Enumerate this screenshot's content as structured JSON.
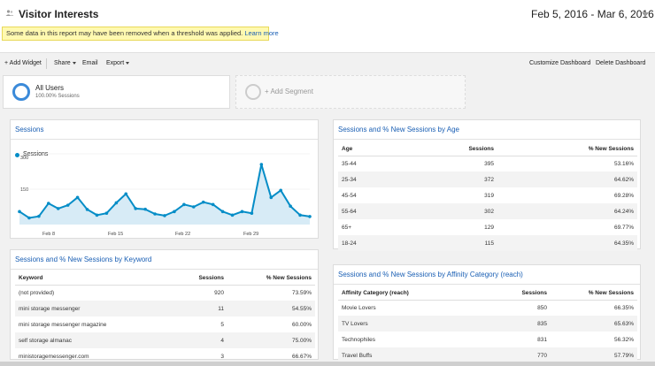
{
  "header": {
    "title": "Visitor Interests",
    "date_range": "Feb 5, 2016 - Mar 6, 2016"
  },
  "notice": {
    "text": "Some data in this report may have been removed when a threshold was applied.",
    "link": "Learn more"
  },
  "toolbar": {
    "add_widget": "+ Add Widget",
    "share": "Share",
    "email": "Email",
    "export": "Export",
    "customize": "Customize Dashboard",
    "delete": "Delete Dashboard"
  },
  "segments": {
    "active_name": "All Users",
    "active_sub": "100.00% Sessions",
    "add_label": "+ Add Segment"
  },
  "sessions_widget": {
    "title": "Sessions",
    "legend": "Sessions",
    "accent": "#058dc7"
  },
  "chart_data": {
    "type": "area",
    "title": "Sessions",
    "series": [
      {
        "name": "Sessions",
        "values": [
          55,
          28,
          35,
          90,
          68,
          82,
          115,
          64,
          40,
          48,
          92,
          130,
          68,
          65,
          45,
          38,
          55,
          85,
          75,
          95,
          85,
          55,
          40,
          55,
          48,
          255,
          115,
          145,
          78,
          40,
          34
        ]
      }
    ],
    "x_labels": [
      "Feb 8",
      "Feb 15",
      "Feb 22",
      "Feb 29"
    ],
    "y_ticks": [
      "150",
      "300"
    ],
    "ylim": [
      0,
      330
    ]
  },
  "age_widget": {
    "title": "Sessions and % New Sessions by Age",
    "columns": [
      "Age",
      "Sessions",
      "% New Sessions"
    ],
    "rows": [
      [
        "35-44",
        "395",
        "53.16%"
      ],
      [
        "25-34",
        "372",
        "64.62%"
      ],
      [
        "45-54",
        "319",
        "69.28%"
      ],
      [
        "55-64",
        "302",
        "64.24%"
      ],
      [
        "65+",
        "129",
        "69.77%"
      ],
      [
        "18-24",
        "115",
        "64.35%"
      ]
    ]
  },
  "keyword_widget": {
    "title": "Sessions and % New Sessions by Keyword",
    "columns": [
      "Keyword",
      "Sessions",
      "% New Sessions"
    ],
    "rows": [
      [
        "(not provided)",
        "920",
        "73.59%"
      ],
      [
        "mini storage messenger",
        "11",
        "54.55%"
      ],
      [
        "mini storage messenger magazine",
        "5",
        "60.00%"
      ],
      [
        "self storage almanac",
        "4",
        "75.00%"
      ],
      [
        "ministoragemessenger.com",
        "3",
        "66.67%"
      ]
    ]
  },
  "affinity_widget": {
    "title": "Sessions and % New Sessions by Affinity Category (reach)",
    "columns": [
      "Affinity Category (reach)",
      "Sessions",
      "% New Sessions"
    ],
    "rows": [
      [
        "Movie Lovers",
        "850",
        "66.35%"
      ],
      [
        "TV Lovers",
        "835",
        "65.63%"
      ],
      [
        "Technophiles",
        "831",
        "56.32%"
      ],
      [
        "Travel Buffs",
        "770",
        "57.79%"
      ]
    ]
  }
}
